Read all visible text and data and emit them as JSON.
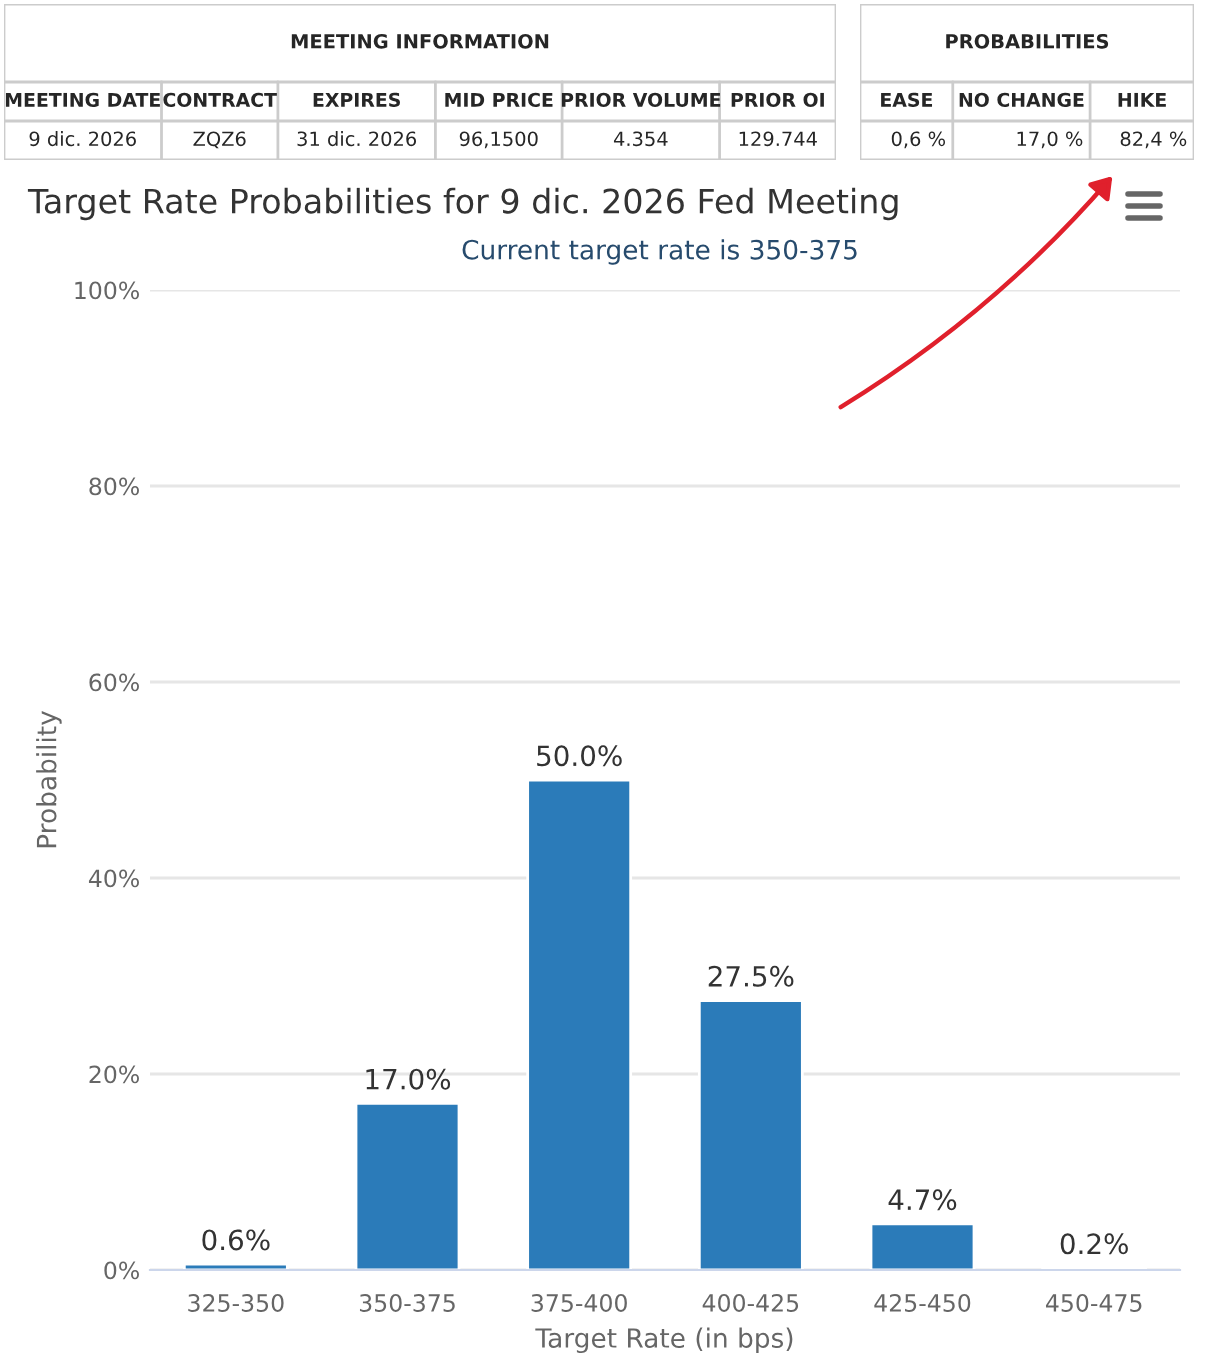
{
  "chart_data": [
    {
      "type": "other",
      "title": "MEETING INFORMATION",
      "categories": [
        "MEETING DATE",
        "CONTRACT",
        "EXPIRES",
        "MID PRICE",
        "PRIOR VOLUME",
        "PRIOR OI"
      ],
      "annotations": [
        "9 dic. 2026",
        "ZQZ6",
        "31 dic. 2026",
        "96,1500",
        "4.354",
        "129.744"
      ]
    },
    {
      "type": "other",
      "title": "PROBABILITIES",
      "categories": [
        "EASE",
        "NO CHANGE",
        "HIKE"
      ],
      "annotations": [
        "0,6 %",
        "17,0 %",
        "82,4 %"
      ]
    },
    {
      "type": "bar",
      "title": "Target Rate Probabilities for 9 dic. 2026 Fed Meeting",
      "subtitle": "Current target rate is 350-375",
      "xlabel": "Target Rate (in bps)",
      "ylabel": "Probability",
      "categories": [
        "325-350",
        "350-375",
        "375-400",
        "400-425",
        "425-450",
        "450-475"
      ],
      "values": [
        0.6,
        17.0,
        50.0,
        27.5,
        4.7,
        0.2
      ],
      "value_labels": [
        "0.6%",
        "17.0%",
        "50.0%",
        "27.5%",
        "4.7%",
        "0.2%"
      ],
      "color": "#2b7bb9",
      "ylim": [
        0,
        100
      ],
      "yticks": [
        {
          "value": 0,
          "label": "0%"
        },
        {
          "value": 20,
          "label": "20%"
        },
        {
          "value": 40,
          "label": "40%"
        },
        {
          "value": 60,
          "label": "60%"
        },
        {
          "value": 80,
          "label": "80%"
        },
        {
          "value": 100,
          "label": "100%"
        }
      ],
      "grid": "y"
    }
  ]
}
